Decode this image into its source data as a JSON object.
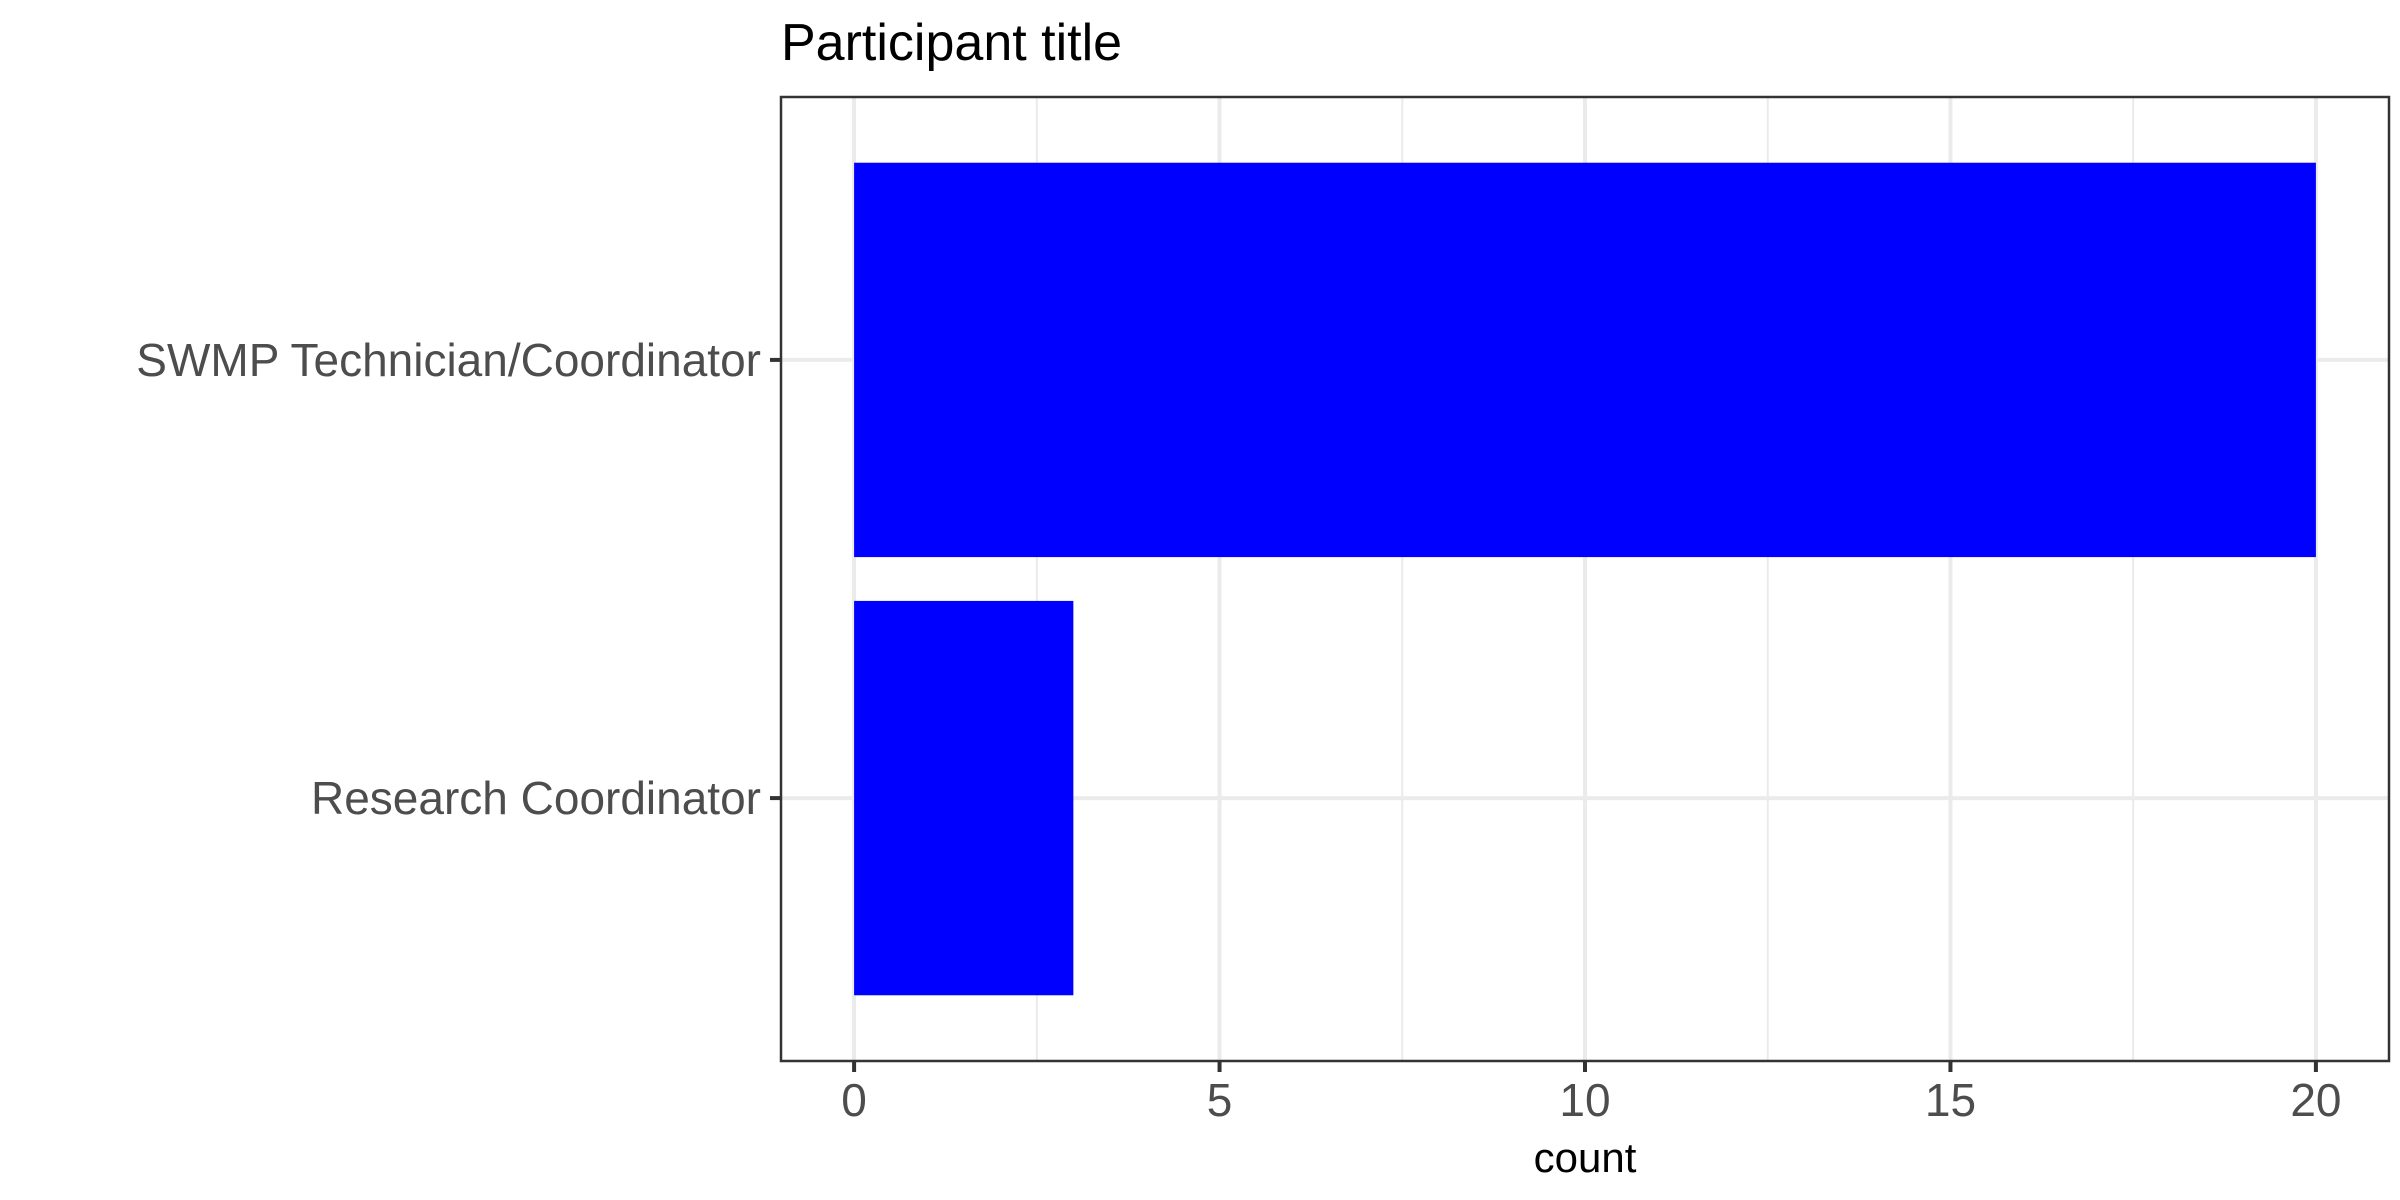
{
  "chart_data": {
    "type": "bar",
    "orientation": "horizontal",
    "title": "Participant title",
    "xlabel": "count",
    "ylabel": "",
    "categories": [
      "SWMP Technician/Coordinator",
      "Research Coordinator"
    ],
    "values": [
      20,
      3
    ],
    "xlim": [
      -1,
      21
    ],
    "xticks": [
      0,
      5,
      10,
      15,
      20
    ],
    "grid": true,
    "bar_color": "#0000ff"
  }
}
